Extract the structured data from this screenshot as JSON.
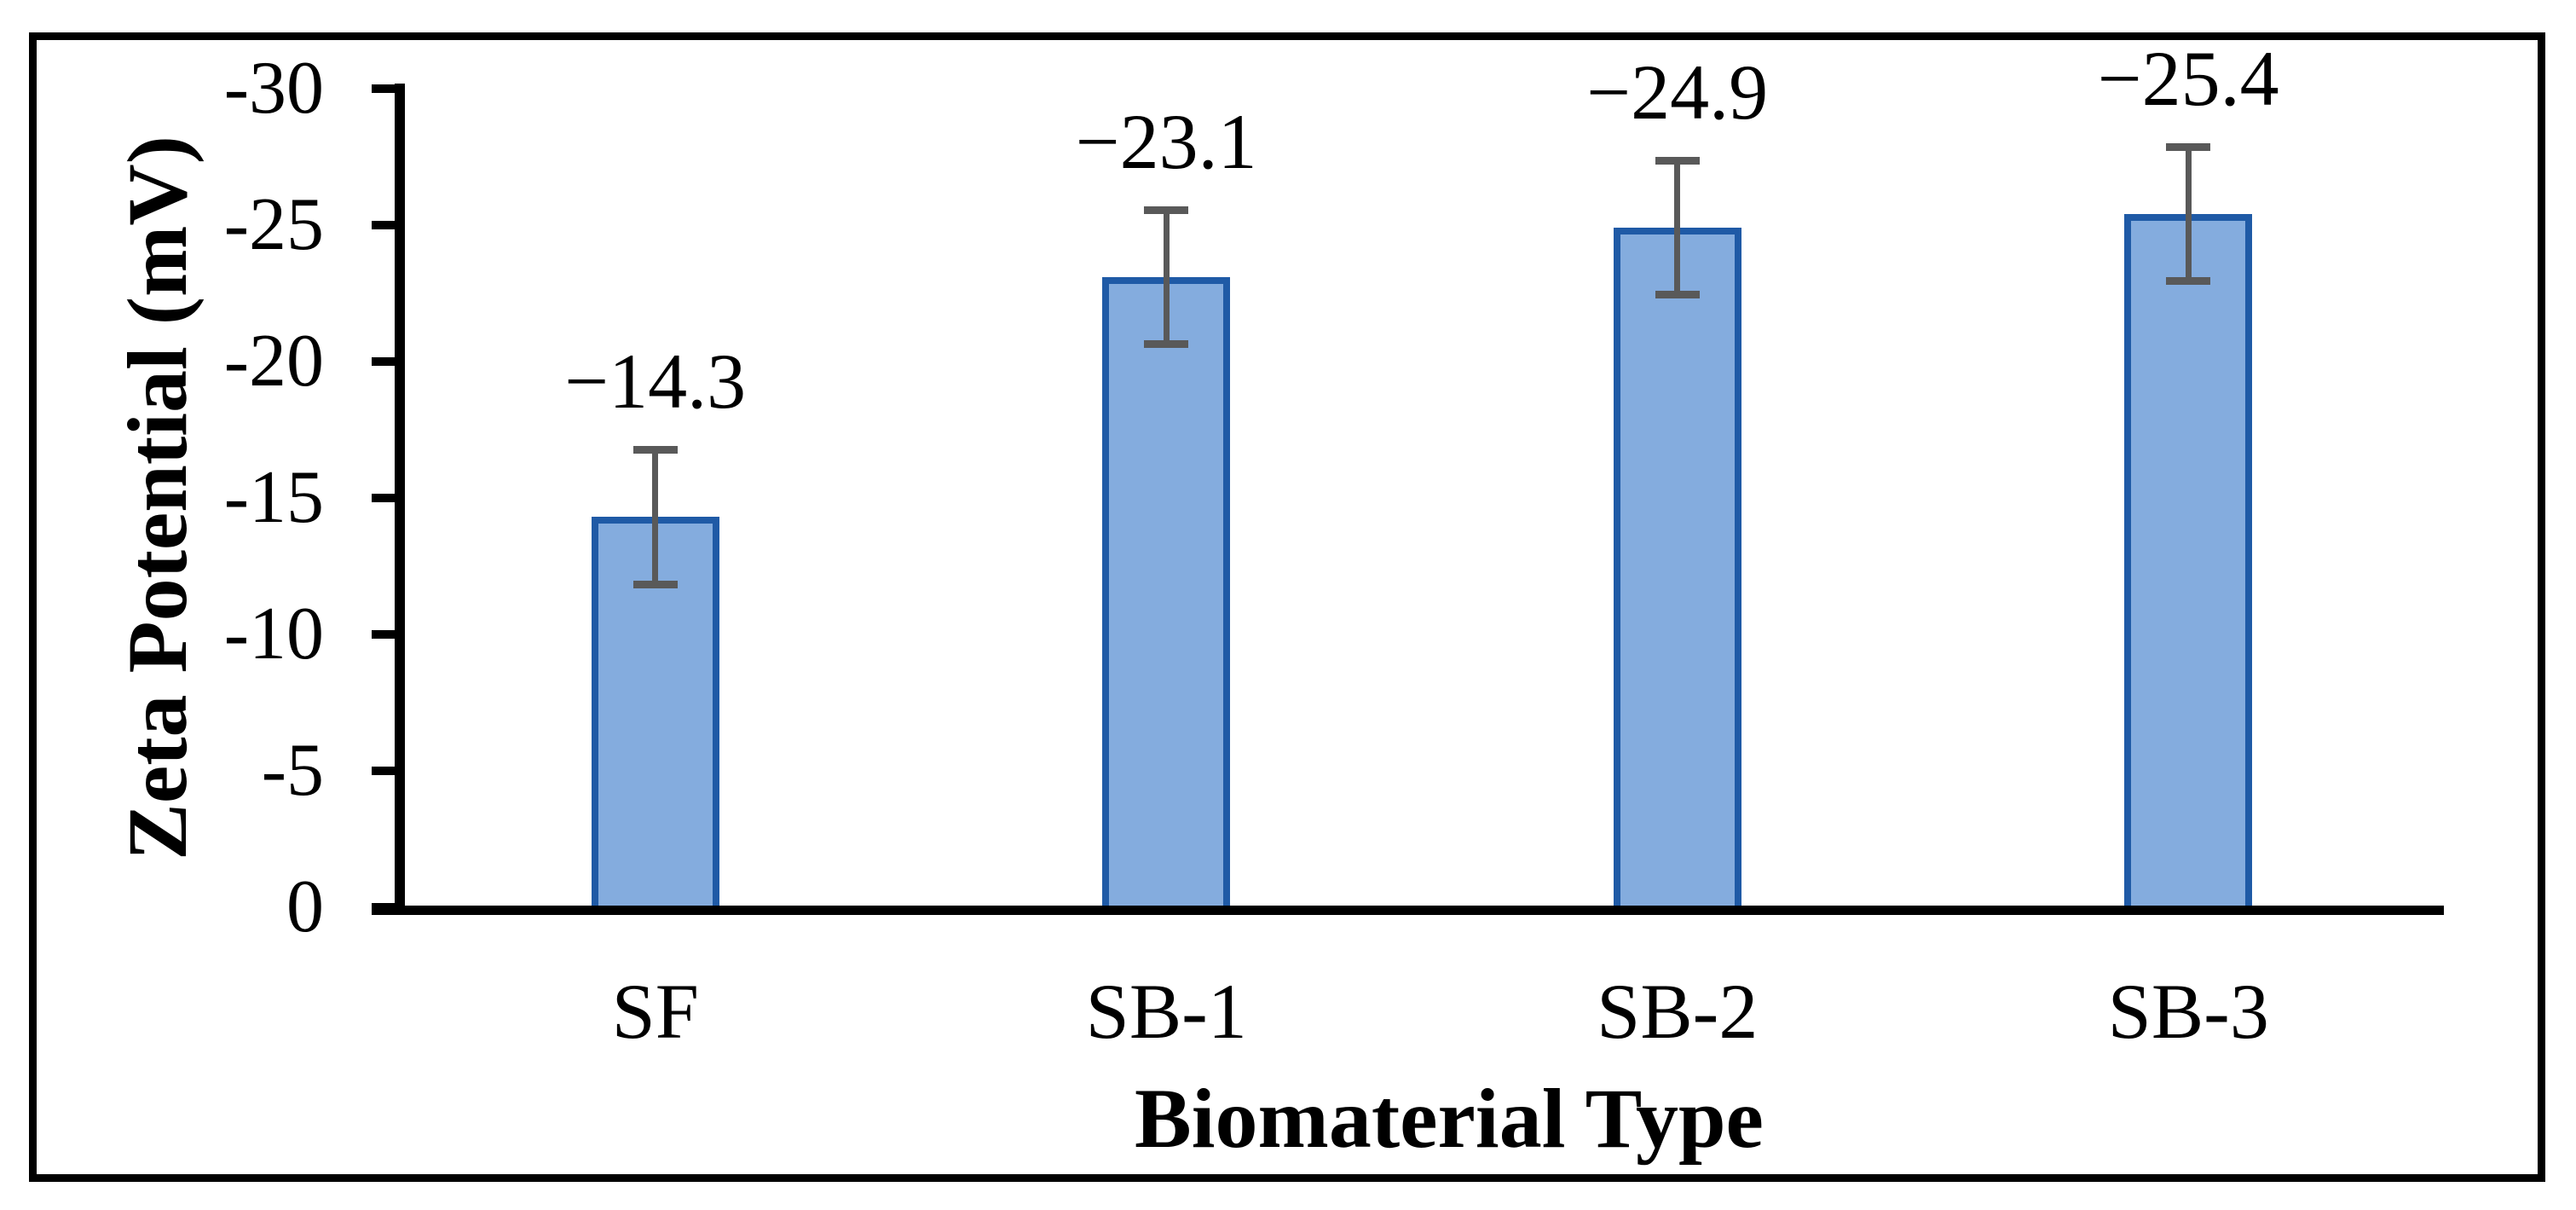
{
  "chart_data": {
    "type": "bar",
    "title": "",
    "xlabel": "Biomaterial Type",
    "ylabel": "Zeta Potential (mV)",
    "categories": [
      "SF",
      "SB-1",
      "SB-2",
      "SB-3"
    ],
    "values": [
      -14.3,
      -23.1,
      -24.9,
      -25.4
    ],
    "error_bars": [
      2.6,
      2.6,
      2.6,
      2.6
    ],
    "data_labels": [
      "−14.3",
      "−23.1",
      "−24.9",
      "−25.4"
    ],
    "y_ticks": [
      -30,
      -25,
      -20,
      -15,
      -10,
      -5,
      0
    ],
    "y_tick_labels": [
      "-30",
      "-25",
      "-20",
      "-15",
      "-10",
      "-5",
      "0"
    ],
    "ylim": [
      0,
      -30
    ],
    "axis_inverted": true,
    "grid": false,
    "legend": false
  },
  "colors": {
    "bar_fill": "#84ACDE",
    "bar_border": "#1F5AA6",
    "error_bar": "#595959",
    "axis": "#000000",
    "frame_border": "#000000",
    "background": "#FFFFFF",
    "text": "#000000"
  }
}
